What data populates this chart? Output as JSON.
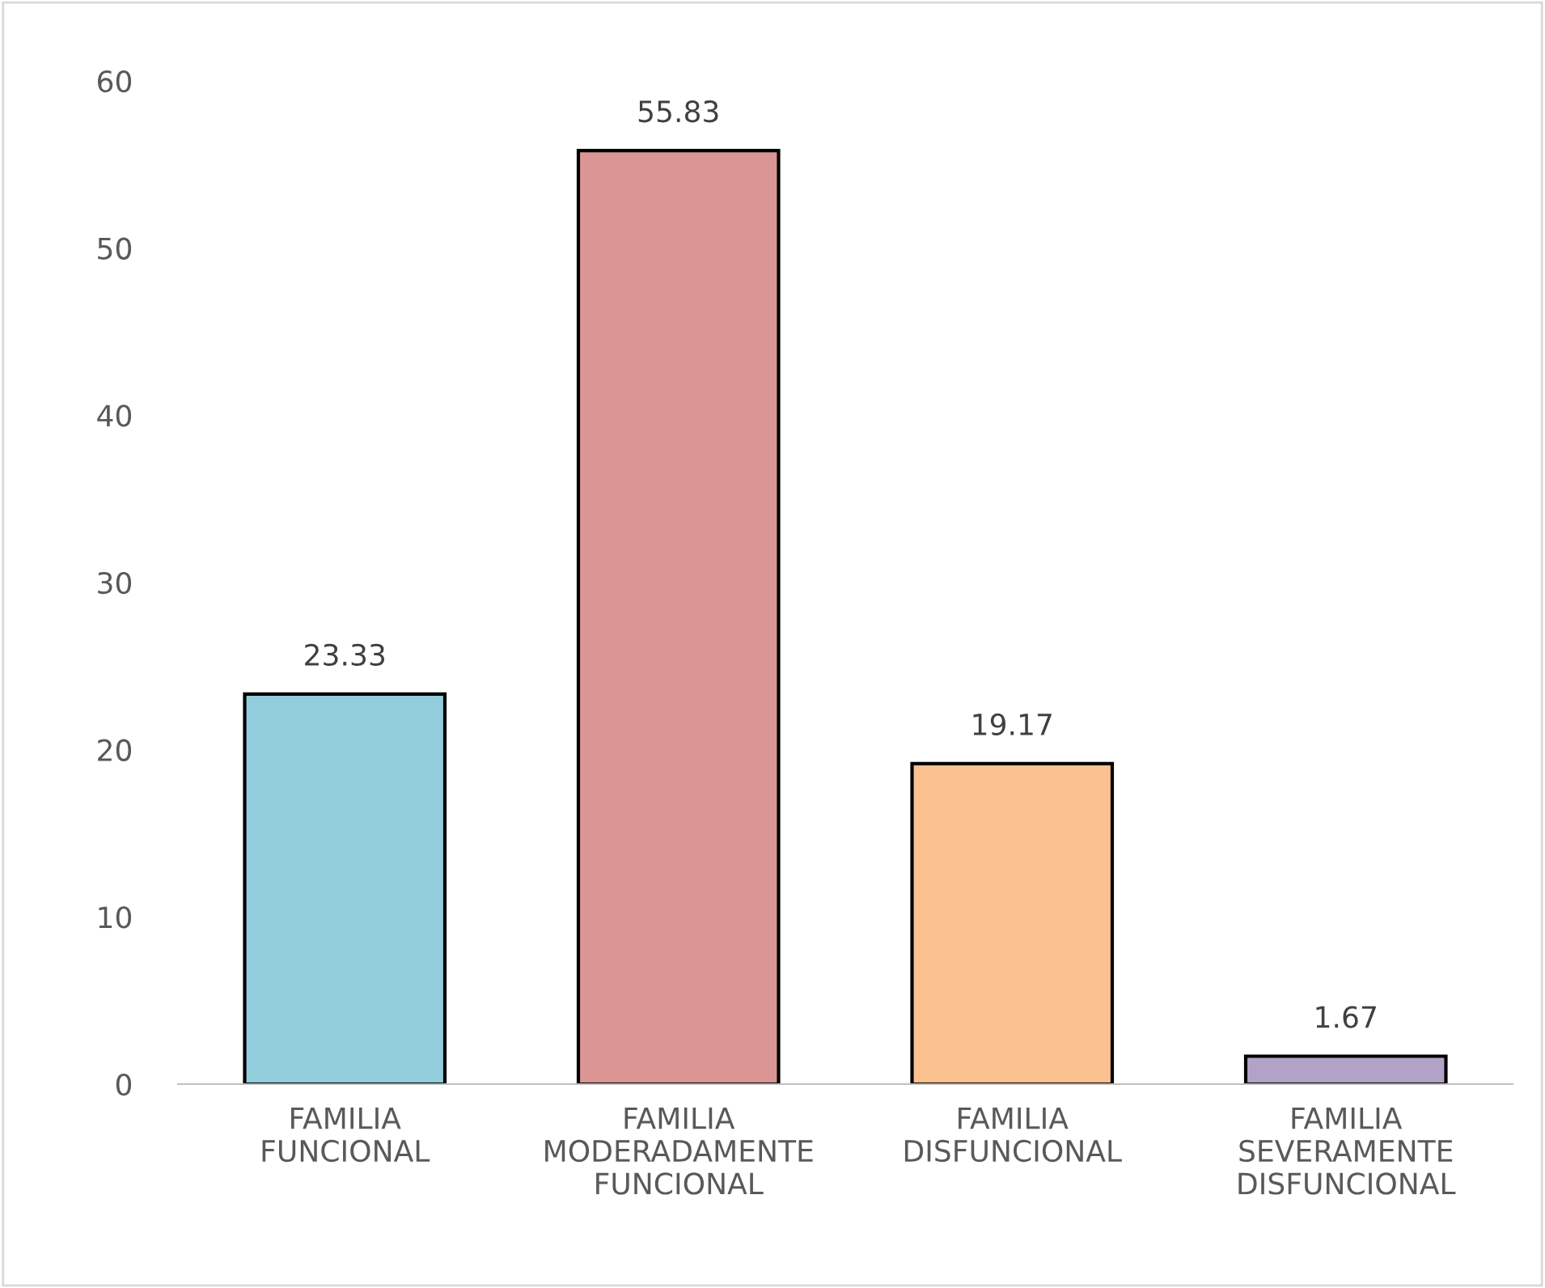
{
  "chart_data": {
    "type": "bar",
    "categories": [
      "FAMILIA\nFUNCIONAL",
      "FAMILIA\nMODERADAMENTE\nFUNCIONAL",
      "FAMILIA\nDISFUNCIONAL",
      "FAMILIA\nSEVERAMENTE\nDISFUNCIONAL"
    ],
    "values": [
      23.33,
      55.83,
      19.17,
      1.67
    ],
    "colors": [
      "#92cddc",
      "#d99694",
      "#fac090",
      "#b3a2c7"
    ],
    "ylim": [
      0,
      60
    ],
    "yticks": [
      0,
      10,
      20,
      30,
      40,
      50,
      60
    ],
    "data_labels": true,
    "grid": false,
    "legend": false
  }
}
